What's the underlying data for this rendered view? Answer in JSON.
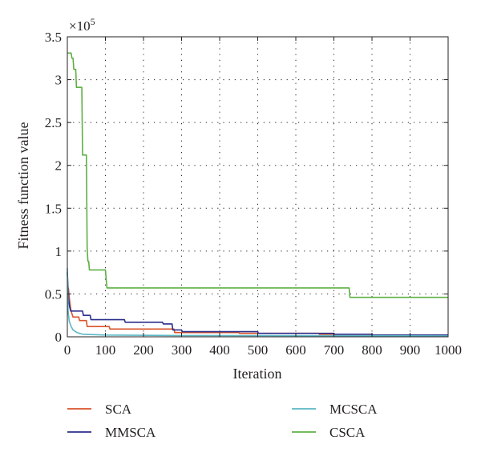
{
  "chart_data": {
    "type": "line",
    "title": "",
    "xlabel": "Iteration",
    "ylabel": "Fitness function value",
    "y_scale_label": "×10",
    "y_scale_exponent": "5",
    "xlim": [
      0,
      1000
    ],
    "ylim": [
      0,
      3.5
    ],
    "y_multiplier": 100000,
    "x_ticks": [
      0,
      100,
      200,
      300,
      400,
      500,
      600,
      700,
      800,
      900,
      1000
    ],
    "y_ticks": [
      0,
      0.5,
      1,
      1.5,
      2,
      2.5,
      3,
      3.5
    ],
    "x_tick_labels": [
      "0",
      "100",
      "200",
      "300",
      "400",
      "500",
      "600",
      "700",
      "800",
      "900",
      "1000"
    ],
    "y_tick_labels": [
      "0",
      "0.5",
      "1",
      "1.5",
      "2",
      "2.5",
      "3",
      "3.5"
    ],
    "grid": true,
    "grid_style": "dotted",
    "legend_position": "bottom",
    "series": [
      {
        "name": "SCA",
        "color": "#d9532a",
        "points": [
          [
            0,
            0.6
          ],
          [
            3,
            0.56
          ],
          [
            6,
            0.42
          ],
          [
            9,
            0.32
          ],
          [
            12,
            0.27
          ],
          [
            15,
            0.23
          ],
          [
            30,
            0.23
          ],
          [
            32,
            0.19
          ],
          [
            50,
            0.19
          ],
          [
            52,
            0.12
          ],
          [
            110,
            0.12
          ],
          [
            112,
            0.09
          ],
          [
            280,
            0.09
          ],
          [
            282,
            0.05
          ],
          [
            450,
            0.05
          ],
          [
            452,
            0.04
          ],
          [
            660,
            0.04
          ],
          [
            662,
            0.03
          ],
          [
            800,
            0.03
          ],
          [
            802,
            0.02
          ],
          [
            1000,
            0.02
          ]
        ]
      },
      {
        "name": "MMSCA",
        "color": "#2b2f8c",
        "points": [
          [
            0,
            0.75
          ],
          [
            3,
            0.45
          ],
          [
            6,
            0.35
          ],
          [
            9,
            0.3
          ],
          [
            40,
            0.3
          ],
          [
            42,
            0.25
          ],
          [
            60,
            0.25
          ],
          [
            62,
            0.2
          ],
          [
            150,
            0.2
          ],
          [
            152,
            0.17
          ],
          [
            250,
            0.17
          ],
          [
            252,
            0.15
          ],
          [
            275,
            0.15
          ],
          [
            277,
            0.08
          ],
          [
            300,
            0.08
          ],
          [
            302,
            0.06
          ],
          [
            500,
            0.06
          ],
          [
            502,
            0.04
          ],
          [
            700,
            0.04
          ],
          [
            702,
            0.03
          ],
          [
            800,
            0.03
          ],
          [
            802,
            0.02
          ],
          [
            1000,
            0.02
          ]
        ]
      },
      {
        "name": "MCSCA",
        "color": "#5ab7c4",
        "points": [
          [
            0,
            0.8
          ],
          [
            2,
            0.3
          ],
          [
            5,
            0.18
          ],
          [
            10,
            0.12
          ],
          [
            15,
            0.08
          ],
          [
            25,
            0.05
          ],
          [
            40,
            0.03
          ],
          [
            100,
            0.02
          ],
          [
            300,
            0.015
          ],
          [
            1000,
            0.01
          ]
        ]
      },
      {
        "name": "CSCA",
        "color": "#5eb044",
        "points": [
          [
            0,
            3.31
          ],
          [
            10,
            3.31
          ],
          [
            12,
            3.25
          ],
          [
            15,
            3.25
          ],
          [
            17,
            3.12
          ],
          [
            22,
            3.12
          ],
          [
            24,
            2.91
          ],
          [
            38,
            2.91
          ],
          [
            40,
            2.12
          ],
          [
            50,
            2.12
          ],
          [
            52,
            1.04
          ],
          [
            54,
            0.88
          ],
          [
            56,
            0.88
          ],
          [
            58,
            0.78
          ],
          [
            100,
            0.78
          ],
          [
            102,
            0.67
          ],
          [
            104,
            0.57
          ],
          [
            740,
            0.57
          ],
          [
            742,
            0.46
          ],
          [
            1000,
            0.46
          ]
        ]
      }
    ]
  },
  "legend": {
    "items": [
      {
        "label": "SCA",
        "color": "#d9532a"
      },
      {
        "label": "MCSCA",
        "color": "#5ab7c4"
      },
      {
        "label": "MMSCA",
        "color": "#2b2f8c"
      },
      {
        "label": "CSCA",
        "color": "#5eb044"
      }
    ]
  }
}
